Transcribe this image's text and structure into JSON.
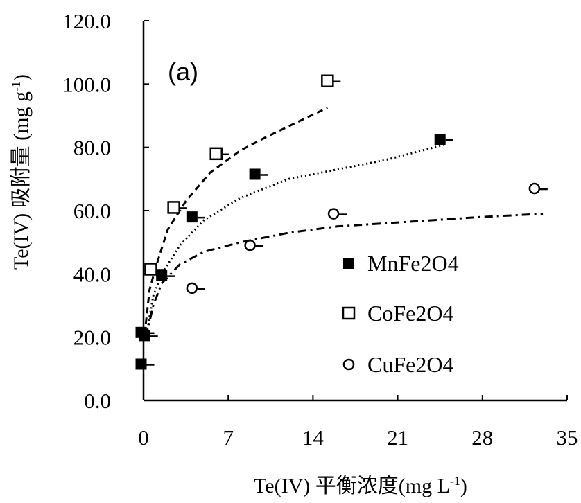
{
  "chart_data": {
    "type": "scatter",
    "panel_label": "(a)",
    "xlabel": "Te(IV) 平衡浓度(mg L",
    "xlabel_sup": "-1",
    "xlabel_end": ")",
    "ylabel": "Te(IV) 吸附量 (mg g",
    "ylabel_sup": "-1",
    "ylabel_end": ")",
    "xlim": [
      0,
      35
    ],
    "ylim": [
      0,
      120
    ],
    "xticks": [
      "0",
      "7",
      "14",
      "21",
      "28",
      "35"
    ],
    "yticks": [
      "0.0",
      "20.0",
      "40.0",
      "60.0",
      "80.0",
      "100.0",
      "120.0"
    ],
    "legend_position": "bottom-right",
    "series": [
      {
        "name": "MnFe2O4",
        "marker": "filled-square",
        "points": [
          [
            -0.2,
            11.5
          ],
          [
            -0.2,
            21.5
          ],
          [
            0.1,
            20.5
          ],
          [
            1.5,
            39.5
          ],
          [
            4.0,
            58.0
          ],
          [
            9.2,
            71.5
          ],
          [
            24.5,
            82.5
          ]
        ],
        "fit_style": "dotted",
        "fit": [
          [
            0.2,
            20
          ],
          [
            0.8,
            33
          ],
          [
            1.5,
            40
          ],
          [
            3,
            49
          ],
          [
            5,
            57
          ],
          [
            8,
            64
          ],
          [
            12,
            70
          ],
          [
            16,
            73
          ],
          [
            20,
            76
          ],
          [
            24,
            80
          ],
          [
            25,
            81
          ]
        ]
      },
      {
        "name": "CoFe2O4",
        "marker": "open-square",
        "points": [
          [
            0.6,
            41.5
          ],
          [
            2.5,
            61.0
          ],
          [
            6.0,
            78.0
          ],
          [
            15.2,
            101.0
          ]
        ],
        "fit_style": "dashed",
        "fit": [
          [
            0.1,
            21
          ],
          [
            0.5,
            35
          ],
          [
            1,
            42
          ],
          [
            2,
            54
          ],
          [
            3.5,
            63
          ],
          [
            5.5,
            72
          ],
          [
            8,
            79
          ],
          [
            10,
            83
          ],
          [
            13,
            88.5
          ],
          [
            15.2,
            92.5
          ]
        ]
      },
      {
        "name": "CuFe2O4",
        "marker": "open-circle",
        "points": [
          [
            4.0,
            35.5
          ],
          [
            8.8,
            49.0
          ],
          [
            15.7,
            59.0
          ],
          [
            32.3,
            67.0
          ]
        ],
        "fit_style": "dash-dot",
        "fit": [
          [
            0.2,
            20
          ],
          [
            0.8,
            30
          ],
          [
            1.5,
            37
          ],
          [
            3,
            43
          ],
          [
            5,
            47
          ],
          [
            8,
            50
          ],
          [
            12,
            53
          ],
          [
            16,
            55
          ],
          [
            20,
            56
          ],
          [
            24,
            57
          ],
          [
            28,
            58
          ],
          [
            33,
            59
          ]
        ]
      }
    ]
  }
}
